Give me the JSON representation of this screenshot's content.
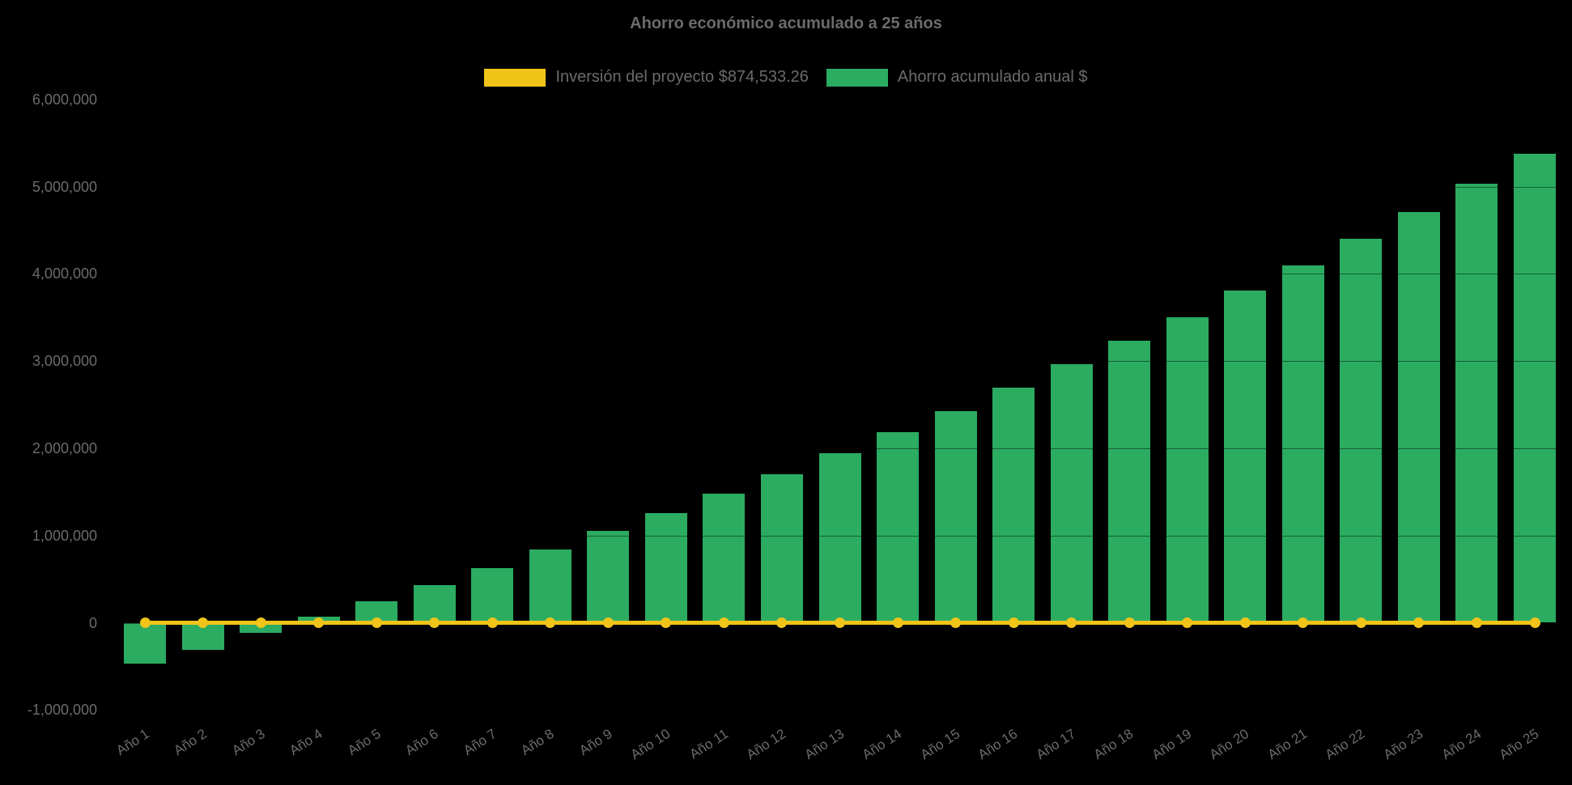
{
  "title": "Ahorro económico acumulado a 25 años",
  "colors": {
    "background": "#000000",
    "bar": "#2bac61",
    "line": "#f0c419",
    "text": "#6b6b6b"
  },
  "legend": {
    "items": [
      {
        "label": "Inversión del proyecto $874,533.26",
        "color": "#f0c419",
        "series_type": "line"
      },
      {
        "label": "Ahorro acumulado anual $",
        "color": "#2bac61",
        "series_type": "bar"
      }
    ]
  },
  "chart_data": {
    "type": "bar",
    "title": "Ahorro económico acumulado a 25 años",
    "categories": [
      "Año 1",
      "Año 2",
      "Año 3",
      "Año 4",
      "Año 5",
      "Año 6",
      "Año 7",
      "Año 8",
      "Año 9",
      "Año 10",
      "Año 11",
      "Año 12",
      "Año 13",
      "Año 14",
      "Año 15",
      "Año 16",
      "Año 17",
      "Año 18",
      "Año 19",
      "Año 20",
      "Año 21",
      "Año 22",
      "Año 23",
      "Año 24",
      "Año 25"
    ],
    "series": [
      {
        "name": "Inversión del proyecto $874,533.26",
        "type": "line",
        "color": "#f0c419",
        "values": [
          0,
          0,
          0,
          0,
          0,
          0,
          0,
          0,
          0,
          0,
          0,
          0,
          0,
          0,
          0,
          0,
          0,
          0,
          0,
          0,
          0,
          0,
          0,
          0,
          0
        ]
      },
      {
        "name": "Ahorro acumulado anual $",
        "type": "bar",
        "color": "#2bac61",
        "values": [
          -470000,
          -310000,
          -120000,
          65000,
          250000,
          435000,
          630000,
          840000,
          1050000,
          1260000,
          1480000,
          1700000,
          1945000,
          2185000,
          2425000,
          2695000,
          2960000,
          3230000,
          3500000,
          3805000,
          4100000,
          4405000,
          4710000,
          5035000,
          5380000
        ]
      }
    ],
    "ylim": [
      -1000000,
      6000000
    ],
    "yticks": [
      {
        "value": 6000000,
        "label": "6,000,000"
      },
      {
        "value": 5000000,
        "label": "5,000,000"
      },
      {
        "value": 4000000,
        "label": "4,000,000"
      },
      {
        "value": 3000000,
        "label": "3,000,000"
      },
      {
        "value": 2000000,
        "label": "2,000,000"
      },
      {
        "value": 1000000,
        "label": "1,000,000"
      },
      {
        "value": 0,
        "label": "0"
      },
      {
        "value": -1000000,
        "label": "-1,000,000"
      }
    ],
    "grid": "horizontal-faint",
    "legend_position": "top-center",
    "x_label_rotation_deg": -33
  }
}
